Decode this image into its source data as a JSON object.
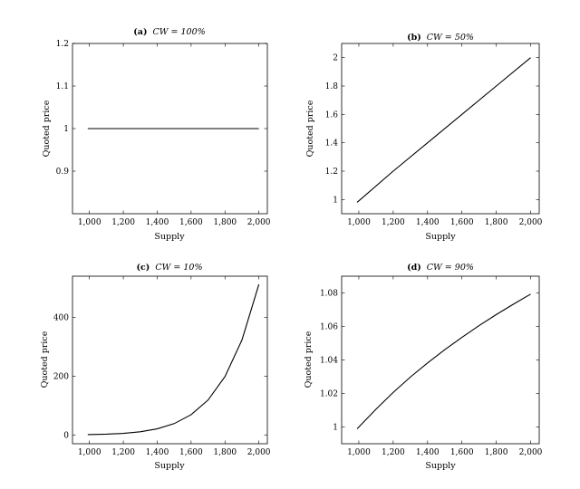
{
  "chart_data": [
    {
      "type": "line",
      "panel": "(a)",
      "title_prefix": "(a)",
      "title_math": "CW = 100%",
      "xlabel": "Supply",
      "ylabel": "Quoted price",
      "xlim": [
        900,
        2050
      ],
      "ylim": [
        0.8,
        1.2
      ],
      "xticks": [
        1000,
        1200,
        1400,
        1600,
        1800,
        2000
      ],
      "xtick_labels": [
        "1,000",
        "1,200",
        "1,400",
        "1,600",
        "1,800",
        "2,000"
      ],
      "yticks": [
        0.9,
        1,
        1.1,
        1.2
      ],
      "ytick_labels": [
        "0.9",
        "1",
        "1.1",
        "1.2"
      ],
      "series": [
        {
          "x": [
            990,
            1200,
            1400,
            1600,
            1800,
            2000
          ],
          "y": [
            1,
            1,
            1,
            1,
            1,
            1
          ]
        }
      ]
    },
    {
      "type": "line",
      "panel": "(b)",
      "title_prefix": "(b)",
      "title_math": "CW = 50%",
      "xlabel": "Supply",
      "ylabel": "Quoted price",
      "xlim": [
        900,
        2050
      ],
      "ylim": [
        0.9,
        2.1
      ],
      "xticks": [
        1000,
        1200,
        1400,
        1600,
        1800,
        2000
      ],
      "xtick_labels": [
        "1,000",
        "1,200",
        "1,400",
        "1,600",
        "1,800",
        "2,000"
      ],
      "yticks": [
        1,
        1.2,
        1.4,
        1.6,
        1.8,
        2
      ],
      "ytick_labels": [
        "1",
        "1.2",
        "1.4",
        "1.6",
        "1.8",
        "2"
      ],
      "series": [
        {
          "x": [
            990,
            1200,
            1400,
            1600,
            1800,
            2000
          ],
          "y": [
            0.98,
            1.2,
            1.4,
            1.6,
            1.8,
            2.0
          ]
        }
      ]
    },
    {
      "type": "line",
      "panel": "(c)",
      "title_prefix": "(c)",
      "title_math": "CW = 10%",
      "xlabel": "Supply",
      "ylabel": "Quoted price",
      "xlim": [
        900,
        2050
      ],
      "ylim": [
        -30,
        540
      ],
      "xticks": [
        1000,
        1200,
        1400,
        1600,
        1800,
        2000
      ],
      "xtick_labels": [
        "1,000",
        "1,200",
        "1,400",
        "1,600",
        "1,800",
        "2,000"
      ],
      "yticks": [
        0,
        200,
        400
      ],
      "ytick_labels": [
        "0",
        "200",
        "400"
      ],
      "series": [
        {
          "x": [
            990,
            1100,
            1200,
            1300,
            1400,
            1500,
            1600,
            1700,
            1800,
            1900,
            2000
          ],
          "y": [
            0.9,
            2.4,
            5.2,
            10.6,
            20.7,
            38.4,
            68.7,
            118.6,
            198.4,
            322.7,
            512.0
          ]
        }
      ]
    },
    {
      "type": "line",
      "panel": "(d)",
      "title_prefix": "(d)",
      "title_math": "CW = 90%",
      "xlabel": "Supply",
      "ylabel": "Quoted price",
      "xlim": [
        900,
        2050
      ],
      "ylim": [
        0.99,
        1.09
      ],
      "xticks": [
        1000,
        1200,
        1400,
        1600,
        1800,
        2000
      ],
      "xtick_labels": [
        "1,000",
        "1,200",
        "1,400",
        "1,600",
        "1,800",
        "2,000"
      ],
      "yticks": [
        1,
        1.02,
        1.04,
        1.06,
        1.08
      ],
      "ytick_labels": [
        "1",
        "1.02",
        "1.04",
        "1.06",
        "1.08"
      ],
      "series": [
        {
          "x": [
            990,
            1100,
            1200,
            1300,
            1400,
            1500,
            1600,
            1700,
            1800,
            1900,
            2000
          ],
          "y": [
            0.9989,
            1.0106,
            1.0206,
            1.0298,
            1.0382,
            1.0461,
            1.0535,
            1.0605,
            1.0671,
            1.0733,
            1.0793
          ]
        }
      ]
    }
  ]
}
